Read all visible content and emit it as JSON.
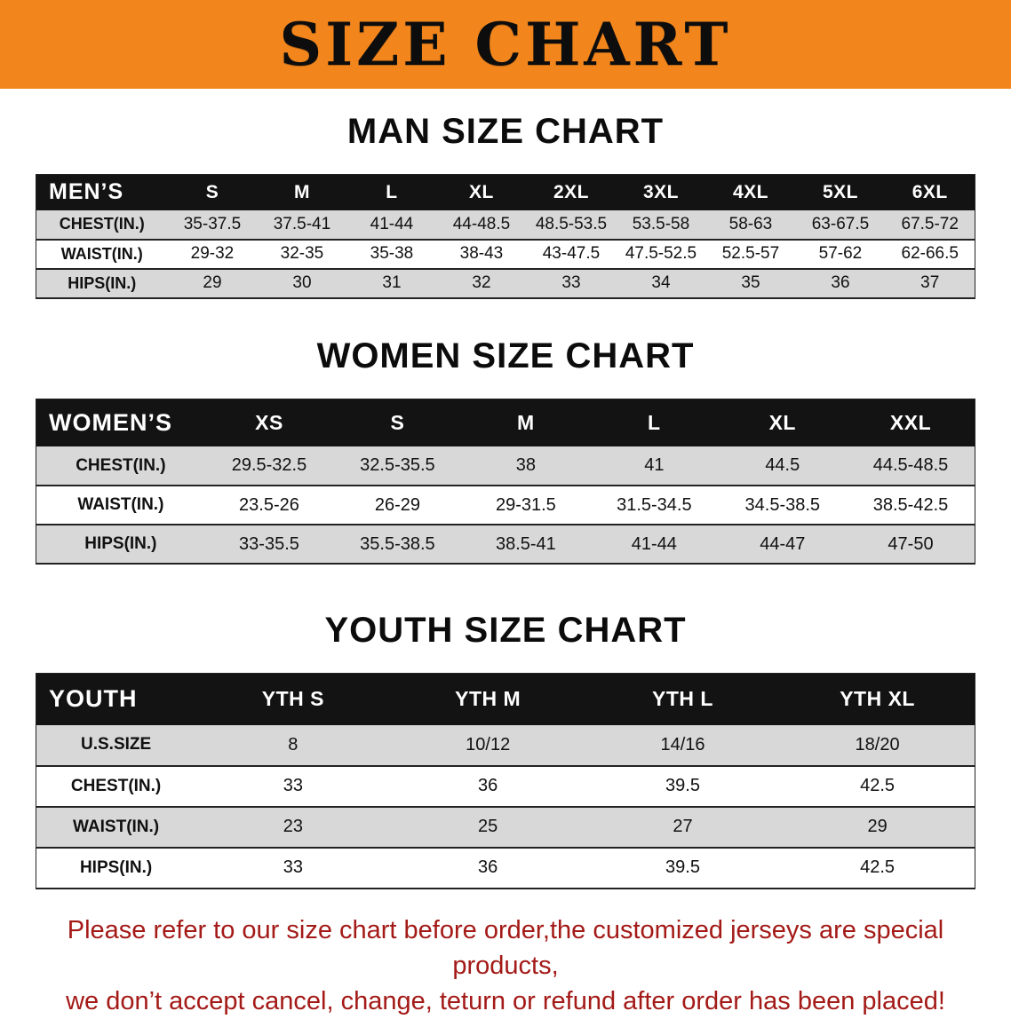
{
  "banner": {
    "title": "SIZE CHART"
  },
  "colors": {
    "banner_bg": "#F2861D",
    "table_header_bg": "#131313",
    "row_alt_gray": "#D8D8D8",
    "footer_text": "#A31A17"
  },
  "men": {
    "heading": "MAN SIZE CHART",
    "header": [
      "MEN’S",
      "S",
      "M",
      "L",
      "XL",
      "2XL",
      "3XL",
      "4XL",
      "5XL",
      "6XL"
    ],
    "rows": [
      [
        "CHEST(IN.)",
        "35-37.5",
        "37.5-41",
        "41-44",
        "44-48.5",
        "48.5-53.5",
        "53.5-58",
        "58-63",
        "63-67.5",
        "67.5-72"
      ],
      [
        "WAIST(IN.)",
        "29-32",
        "32-35",
        "35-38",
        "38-43",
        "43-47.5",
        "47.5-52.5",
        "52.5-57",
        "57-62",
        "62-66.5"
      ],
      [
        "HIPS(IN.)",
        "29",
        "30",
        "31",
        "32",
        "33",
        "34",
        "35",
        "36",
        "37"
      ]
    ]
  },
  "women": {
    "heading": "WOMEN SIZE CHART",
    "header": [
      "WOMEN’S",
      "XS",
      "S",
      "M",
      "L",
      "XL",
      "XXL"
    ],
    "rows": [
      [
        "CHEST(IN.)",
        "29.5-32.5",
        "32.5-35.5",
        "38",
        "41",
        "44.5",
        "44.5-48.5"
      ],
      [
        "WAIST(IN.)",
        "23.5-26",
        "26-29",
        "29-31.5",
        "31.5-34.5",
        "34.5-38.5",
        "38.5-42.5"
      ],
      [
        "HIPS(IN.)",
        "33-35.5",
        "35.5-38.5",
        "38.5-41",
        "41-44",
        "44-47",
        "47-50"
      ]
    ]
  },
  "youth": {
    "heading": "YOUTH SIZE CHART",
    "header": [
      "YOUTH",
      "YTH S",
      "YTH M",
      "YTH L",
      "YTH XL"
    ],
    "rows": [
      [
        "U.S.SIZE",
        "8",
        "10/12",
        "14/16",
        "18/20"
      ],
      [
        "CHEST(IN.)",
        "33",
        "36",
        "39.5",
        "42.5"
      ],
      [
        "WAIST(IN.)",
        "23",
        "25",
        "27",
        "29"
      ],
      [
        "HIPS(IN.)",
        "33",
        "36",
        "39.5",
        "42.5"
      ]
    ]
  },
  "footer": {
    "line1": "Please refer to our size chart before order,the customized jerseys are special products,",
    "line2": "we don’t accept cancel, change, teturn or refund after order has been placed!"
  }
}
